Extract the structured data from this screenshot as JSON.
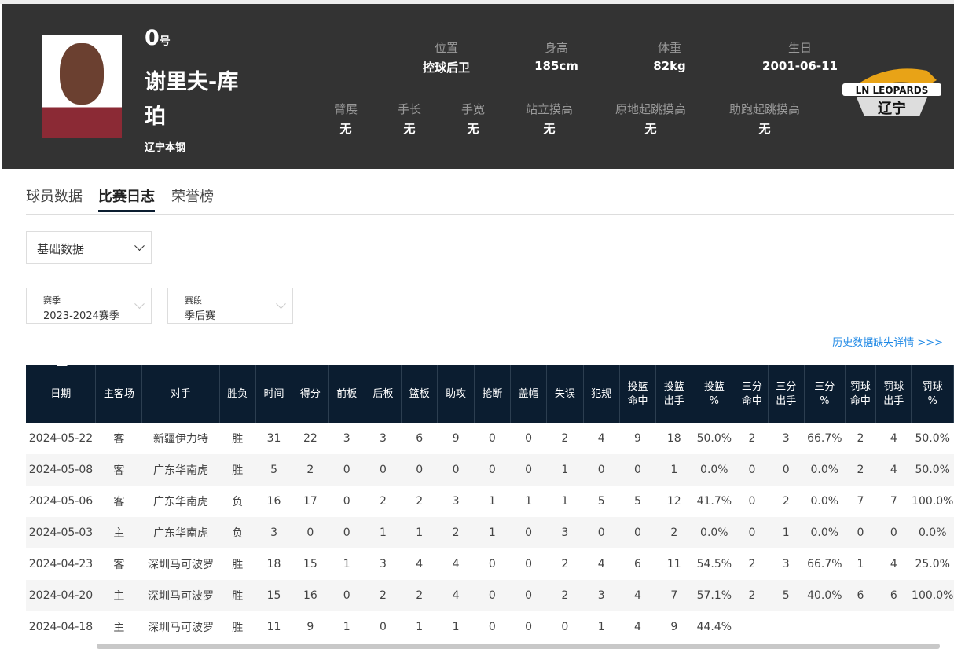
{
  "player": {
    "number": "0",
    "number_suffix": "号",
    "name": "谢里夫-库珀",
    "team": "辽宁本钢",
    "stats_row1": [
      {
        "label": "位置",
        "value": "控球后卫"
      },
      {
        "label": "身高",
        "value": "185cm"
      },
      {
        "label": "体重",
        "value": "82kg"
      },
      {
        "label": "生日",
        "value": "2001-06-11"
      }
    ],
    "stats_row2": [
      {
        "label": "臂展",
        "value": "无"
      },
      {
        "label": "手长",
        "value": "无"
      },
      {
        "label": "手宽",
        "value": "无"
      },
      {
        "label": "站立摸高",
        "value": "无"
      },
      {
        "label": "原地起跳摸高",
        "value": "无"
      },
      {
        "label": "助跑起跳摸高",
        "value": "无"
      }
    ],
    "logo_text": "LN LEOPARDS 辽宁"
  },
  "tabs": [
    "球员数据",
    "比赛日志",
    "荣誉榜"
  ],
  "active_tab": 1,
  "data_type_select": "基础数据",
  "season_filter": {
    "label": "赛季",
    "value": "2023-2024赛季"
  },
  "stage_filter": {
    "label": "赛段",
    "value": "季后赛"
  },
  "history_link": "历史数据缺失详情 >>>",
  "table": {
    "headers": [
      "日期",
      "主客场",
      "对手",
      "胜负",
      "时间",
      "得分",
      "前板",
      "后板",
      "篮板",
      "助攻",
      "抢断",
      "盖帽",
      "失误",
      "犯规",
      "投篮\n命中",
      "投篮\n出手",
      "投篮\n%",
      "三分\n命中",
      "三分\n出手",
      "三分\n%",
      "罚球\n命中",
      "罚球\n出手",
      "罚球\n%"
    ],
    "rows": [
      [
        "2024-05-22",
        "客",
        "新疆伊力特",
        "胜",
        "31",
        "22",
        "3",
        "3",
        "6",
        "9",
        "0",
        "0",
        "2",
        "4",
        "9",
        "18",
        "50.0%",
        "2",
        "3",
        "66.7%",
        "2",
        "4",
        "50.0%"
      ],
      [
        "2024-05-08",
        "客",
        "广东华南虎",
        "胜",
        "5",
        "2",
        "0",
        "0",
        "0",
        "0",
        "0",
        "0",
        "1",
        "0",
        "0",
        "1",
        "0.0%",
        "0",
        "0",
        "0.0%",
        "2",
        "4",
        "50.0%"
      ],
      [
        "2024-05-06",
        "客",
        "广东华南虎",
        "负",
        "16",
        "17",
        "0",
        "2",
        "2",
        "3",
        "1",
        "1",
        "1",
        "5",
        "5",
        "12",
        "41.7%",
        "0",
        "2",
        "0.0%",
        "7",
        "7",
        "100.0%"
      ],
      [
        "2024-05-03",
        "主",
        "广东华南虎",
        "负",
        "3",
        "0",
        "0",
        "1",
        "1",
        "2",
        "1",
        "0",
        "3",
        "0",
        "0",
        "2",
        "0.0%",
        "0",
        "1",
        "0.0%",
        "0",
        "0",
        "0.0%"
      ],
      [
        "2024-04-23",
        "客",
        "深圳马可波罗",
        "胜",
        "18",
        "15",
        "1",
        "3",
        "4",
        "4",
        "0",
        "0",
        "2",
        "4",
        "6",
        "11",
        "54.5%",
        "2",
        "3",
        "66.7%",
        "1",
        "4",
        "25.0%"
      ],
      [
        "2024-04-20",
        "主",
        "深圳马可波罗",
        "胜",
        "15",
        "16",
        "0",
        "2",
        "2",
        "4",
        "0",
        "0",
        "2",
        "3",
        "4",
        "7",
        "57.1%",
        "2",
        "5",
        "40.0%",
        "6",
        "6",
        "100.0%"
      ],
      [
        "2024-04-18",
        "主",
        "深圳马可波罗",
        "胜",
        "11",
        "9",
        "1",
        "0",
        "1",
        "1",
        "0",
        "0",
        "0",
        "1",
        "4",
        "9",
        "44.4%",
        "",
        "",
        "",
        "",
        "",
        ""
      ]
    ]
  },
  "colors": {
    "hero_bg": "#333333",
    "table_header_bg": "#0b1d30",
    "link": "#1e88e5"
  }
}
